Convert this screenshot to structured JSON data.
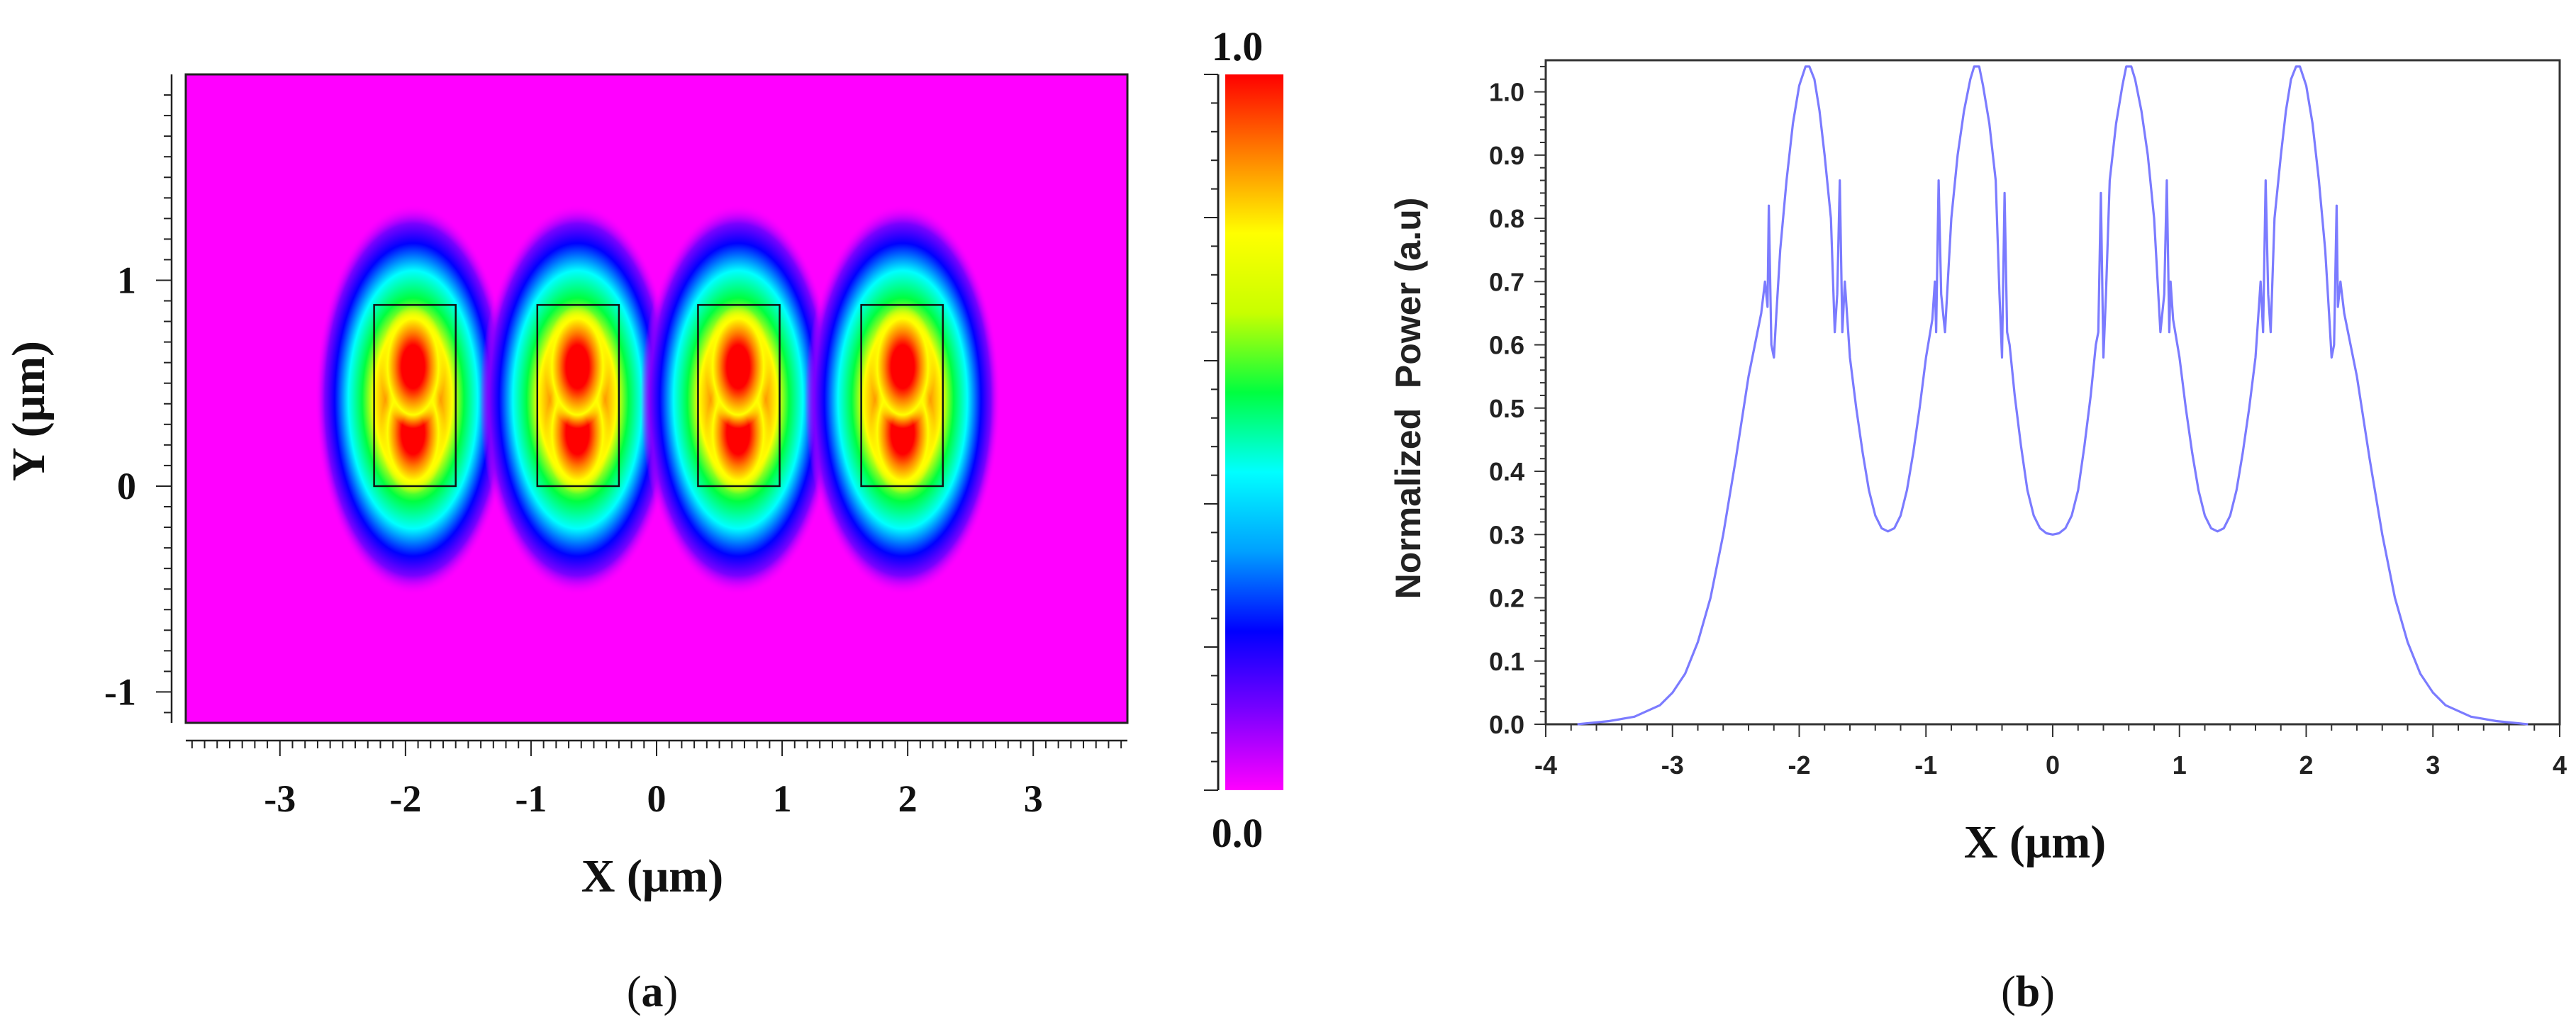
{
  "chart_data": [
    {
      "type": "heatmap",
      "panel_label": "a",
      "xlabel": "X (μm)",
      "ylabel": "Y (μm)",
      "xlim": [
        -3.75,
        3.75
      ],
      "ylim": [
        -1.15,
        2.0
      ],
      "x_ticks": [
        -3,
        -2,
        -1,
        0,
        1,
        2,
        3
      ],
      "y_ticks": [
        -1,
        0,
        1
      ],
      "colorbar": {
        "min_label": "0.0",
        "max_label": "1.0",
        "colors": [
          "#ff00ff",
          "#7a00ff",
          "#0000ff",
          "#00a0ff",
          "#00ffff",
          "#00ff40",
          "#c8ff00",
          "#ffff00",
          "#ff8000",
          "#ff0000"
        ]
      },
      "background_color": "#ff00ff",
      "waveguides": [
        {
          "x": [
            -2.25,
            -1.6
          ],
          "y": [
            0.0,
            0.88
          ]
        },
        {
          "x": [
            -0.95,
            -0.3
          ],
          "y": [
            0.0,
            0.88
          ]
        },
        {
          "x": [
            0.33,
            0.98
          ],
          "y": [
            0.0,
            0.88
          ]
        },
        {
          "x": [
            1.63,
            2.28
          ],
          "y": [
            0.0,
            0.88
          ]
        }
      ],
      "mode_centers": [
        {
          "x": -1.94,
          "y": [
            0.26,
            0.58
          ]
        },
        {
          "x": -0.63,
          "y": [
            0.26,
            0.58
          ]
        },
        {
          "x": 0.65,
          "y": [
            0.26,
            0.58
          ]
        },
        {
          "x": 1.96,
          "y": [
            0.26,
            0.58
          ]
        }
      ]
    },
    {
      "type": "line",
      "panel_label": "b",
      "xlabel": "X (μm)",
      "ylabel": "Normalized  Power (a.u)",
      "xlim": [
        -4,
        4
      ],
      "ylim": [
        0.0,
        1.05
      ],
      "x_ticks": [
        -4,
        -3,
        -2,
        -1,
        0,
        1,
        2,
        3,
        4
      ],
      "y_ticks": [
        "0.0",
        "0.1",
        "0.2",
        "0.3",
        "0.4",
        "0.5",
        "0.6",
        "0.7",
        "0.8",
        "0.9",
        "1.0"
      ],
      "line_color": "#7b7bff",
      "series": [
        {
          "x": [
            -3.75,
            -3.5,
            -3.3,
            -3.1,
            -3.0,
            -2.9,
            -2.8,
            -2.7,
            -2.6,
            -2.5,
            -2.4,
            -2.3,
            -2.27,
            -2.25,
            -2.24,
            -2.22,
            -2.2,
            -2.18,
            -2.15,
            -2.1,
            -2.05,
            -2.0,
            -1.95,
            -1.92,
            -1.88,
            -1.84,
            -1.8,
            -1.75,
            -1.72,
            -1.7,
            -1.68,
            -1.66,
            -1.64,
            -1.62,
            -1.6,
            -1.55,
            -1.5,
            -1.45,
            -1.4,
            -1.35,
            -1.3,
            -1.25,
            -1.2,
            -1.15,
            -1.1,
            -1.05,
            -1.0,
            -0.95,
            -0.93,
            -0.92,
            -0.9,
            -0.88,
            -0.85,
            -0.8,
            -0.75,
            -0.7,
            -0.65,
            -0.62,
            -0.58,
            -0.55,
            -0.5,
            -0.45,
            -0.42,
            -0.4,
            -0.38,
            -0.36,
            -0.34,
            -0.3,
            -0.25,
            -0.2,
            -0.15,
            -0.1,
            -0.05,
            0.0,
            0.05,
            0.1,
            0.15,
            0.2,
            0.25,
            0.3,
            0.34,
            0.36,
            0.38,
            0.4,
            0.42,
            0.45,
            0.5,
            0.55,
            0.58,
            0.62,
            0.65,
            0.7,
            0.75,
            0.8,
            0.85,
            0.88,
            0.9,
            0.92,
            0.93,
            0.95,
            1.0,
            1.05,
            1.1,
            1.15,
            1.2,
            1.25,
            1.3,
            1.35,
            1.4,
            1.45,
            1.5,
            1.55,
            1.6,
            1.62,
            1.64,
            1.66,
            1.68,
            1.7,
            1.72,
            1.75,
            1.8,
            1.84,
            1.88,
            1.92,
            1.95,
            2.0,
            2.05,
            2.1,
            2.15,
            2.18,
            2.2,
            2.22,
            2.24,
            2.25,
            2.27,
            2.3,
            2.4,
            2.5,
            2.6,
            2.7,
            2.8,
            2.9,
            3.0,
            3.1,
            3.3,
            3.5,
            3.75
          ],
          "y": [
            0.0,
            0.005,
            0.012,
            0.03,
            0.05,
            0.08,
            0.13,
            0.2,
            0.3,
            0.42,
            0.55,
            0.65,
            0.7,
            0.66,
            0.82,
            0.6,
            0.58,
            0.65,
            0.75,
            0.86,
            0.95,
            1.01,
            1.04,
            1.04,
            1.02,
            0.97,
            0.9,
            0.8,
            0.62,
            0.68,
            0.86,
            0.62,
            0.7,
            0.64,
            0.58,
            0.5,
            0.43,
            0.37,
            0.33,
            0.31,
            0.305,
            0.31,
            0.33,
            0.37,
            0.43,
            0.5,
            0.58,
            0.64,
            0.7,
            0.62,
            0.86,
            0.68,
            0.62,
            0.8,
            0.9,
            0.97,
            1.02,
            1.04,
            1.04,
            1.01,
            0.95,
            0.86,
            0.68,
            0.58,
            0.84,
            0.62,
            0.6,
            0.52,
            0.44,
            0.37,
            0.33,
            0.31,
            0.302,
            0.3,
            0.302,
            0.31,
            0.33,
            0.37,
            0.44,
            0.52,
            0.6,
            0.62,
            0.84,
            0.58,
            0.68,
            0.86,
            0.95,
            1.01,
            1.04,
            1.04,
            1.02,
            0.97,
            0.9,
            0.8,
            0.62,
            0.68,
            0.86,
            0.62,
            0.7,
            0.64,
            0.58,
            0.5,
            0.43,
            0.37,
            0.33,
            0.31,
            0.305,
            0.31,
            0.33,
            0.37,
            0.43,
            0.5,
            0.58,
            0.64,
            0.7,
            0.62,
            0.86,
            0.68,
            0.62,
            0.8,
            0.9,
            0.97,
            1.02,
            1.04,
            1.04,
            1.01,
            0.95,
            0.86,
            0.75,
            0.65,
            0.58,
            0.6,
            0.82,
            0.66,
            0.7,
            0.65,
            0.55,
            0.42,
            0.3,
            0.2,
            0.13,
            0.08,
            0.05,
            0.03,
            0.012,
            0.005,
            0.0
          ]
        }
      ]
    }
  ]
}
